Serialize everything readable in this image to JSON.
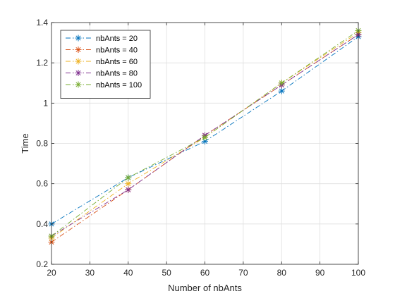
{
  "chart_data": {
    "type": "line",
    "title": "",
    "xlabel": "Number of nbAnts",
    "ylabel": "Time",
    "xlim": [
      20,
      100
    ],
    "ylim": [
      0.2,
      1.4
    ],
    "xticks": [
      "20",
      "30",
      "40",
      "50",
      "60",
      "70",
      "80",
      "90",
      "100"
    ],
    "yticks": [
      "0.2",
      "0.4",
      "0.6",
      "0.8",
      "1",
      "1.2",
      "1.4"
    ],
    "grid": true,
    "legend_position": "top-left",
    "marker": "asterisk",
    "line_style": "dash-dot",
    "x": [
      20,
      40,
      60,
      80,
      100
    ],
    "series": [
      {
        "name": "nbAnts = 20",
        "color": "#0072BD",
        "values": [
          0.4,
          0.63,
          0.81,
          1.06,
          1.33
        ]
      },
      {
        "name": "nbAnts = 40",
        "color": "#D95319",
        "values": [
          0.31,
          0.57,
          0.84,
          1.09,
          1.34
        ]
      },
      {
        "name": "nbAnts = 60",
        "color": "#EDB120",
        "values": [
          0.33,
          0.6,
          0.83,
          1.1,
          1.35
        ]
      },
      {
        "name": "nbAnts = 80",
        "color": "#7E2F8E",
        "values": [
          0.34,
          0.57,
          0.84,
          1.09,
          1.34
        ]
      },
      {
        "name": "nbAnts = 100",
        "color": "#77AC30",
        "values": [
          0.34,
          0.63,
          0.83,
          1.1,
          1.36
        ]
      }
    ]
  }
}
